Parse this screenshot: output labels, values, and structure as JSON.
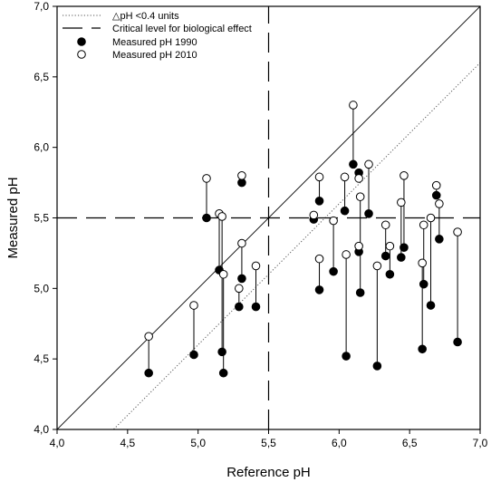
{
  "chart_data": {
    "type": "scatter",
    "xlabel": "Reference pH",
    "ylabel": "Measured pH",
    "xlim": [
      4.0,
      7.0
    ],
    "ylim": [
      4.0,
      7.0
    ],
    "x_ticks": [
      "4,0",
      "4,5",
      "5,0",
      "5,5",
      "6,0",
      "6,5",
      "7,0"
    ],
    "y_ticks": [
      "4,0",
      "4,5",
      "5,0",
      "5,5",
      "6,0",
      "6,5",
      "7,0"
    ],
    "x_tick_values": [
      4.0,
      4.5,
      5.0,
      5.5,
      6.0,
      6.5,
      7.0
    ],
    "y_tick_values": [
      4.0,
      4.5,
      5.0,
      5.5,
      6.0,
      6.5,
      7.0
    ],
    "grid": false,
    "legend_position": "top-left",
    "legend": [
      {
        "label": "△pH <0.4 units",
        "style": "dotted-line"
      },
      {
        "label": "Critical level for biological effect",
        "style": "dashed-line"
      },
      {
        "label": "Measured pH 1990",
        "style": "filled-circle"
      },
      {
        "label": "Measured pH 2010",
        "style": "open-circle"
      }
    ],
    "reference_lines": {
      "identity": {
        "slope": 1,
        "intercept": 0
      },
      "delta_line": {
        "slope": 1,
        "intercept": -0.4
      },
      "critical_level_x": 5.5,
      "critical_level_y": 5.5
    },
    "series": [
      {
        "name": "Measured pH 1990",
        "x": [
          4.65,
          4.97,
          5.06,
          5.15,
          5.17,
          5.18,
          5.29,
          5.31,
          5.31,
          5.41,
          5.82,
          5.86,
          5.86,
          5.96,
          6.04,
          6.05,
          6.1,
          6.14,
          6.14,
          6.15,
          6.21,
          6.27,
          6.33,
          6.36,
          6.44,
          6.46,
          6.59,
          6.6,
          6.65,
          6.69,
          6.71,
          6.84
        ],
        "y": [
          4.4,
          4.53,
          5.5,
          5.13,
          4.55,
          4.4,
          4.87,
          5.75,
          5.07,
          4.87,
          5.49,
          5.62,
          4.99,
          5.12,
          5.55,
          4.52,
          5.88,
          5.82,
          5.26,
          4.97,
          5.53,
          4.45,
          5.23,
          5.1,
          5.22,
          5.29,
          4.57,
          5.03,
          4.88,
          5.66,
          5.35,
          4.62
        ],
        "color": "#000000"
      },
      {
        "name": "Measured pH 2010",
        "x": [
          4.65,
          4.97,
          5.06,
          5.15,
          5.17,
          5.18,
          5.29,
          5.31,
          5.31,
          5.41,
          5.82,
          5.86,
          5.86,
          5.96,
          6.04,
          6.05,
          6.1,
          6.14,
          6.14,
          6.15,
          6.21,
          6.27,
          6.33,
          6.36,
          6.44,
          6.46,
          6.59,
          6.6,
          6.65,
          6.69,
          6.71,
          6.84
        ],
        "y": [
          4.66,
          4.88,
          5.78,
          5.53,
          5.51,
          5.1,
          5.0,
          5.8,
          5.32,
          5.16,
          5.52,
          5.79,
          5.21,
          5.48,
          5.79,
          5.24,
          6.3,
          5.78,
          5.3,
          5.65,
          5.88,
          5.16,
          5.45,
          5.3,
          5.61,
          5.8,
          5.18,
          5.45,
          5.5,
          5.73,
          5.6,
          5.4
        ],
        "color": "#000000"
      }
    ]
  }
}
